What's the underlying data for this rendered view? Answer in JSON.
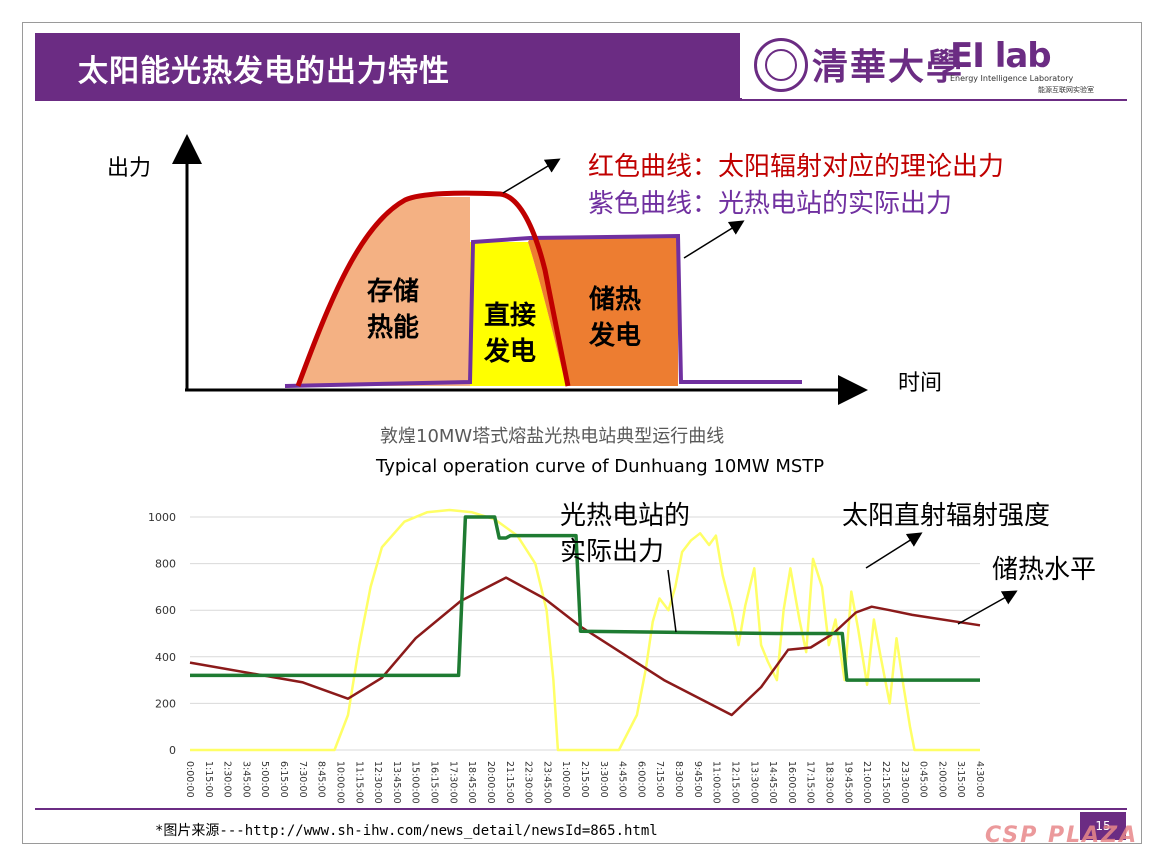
{
  "header": {
    "title": "太阳能光热发电的出力特性",
    "logo_university": "清華大學",
    "logo_lab": "EI lab",
    "logo_lab_sub": "Energy Intelligence Laboratory",
    "logo_lab_sub_cn": "能源互联网实验室"
  },
  "footer": {
    "source": "*图片来源---http://www.sh-ihw.com/news_detail/newsId=865.html",
    "page_number": "15",
    "watermark": "CSP PLAZA"
  },
  "colors": {
    "theme_purple": "#6b2c83",
    "theoretical_curve": "#c00000",
    "actual_curve": "#7030a0",
    "storage_area": "#f4b183",
    "direct_area": "#ffff00",
    "discharge_area": "#ed7d31",
    "plant_output": "#1e7b32",
    "dni": "#ffff66",
    "storage_level": "#8b1a1a"
  },
  "chart_data": [
    {
      "type": "area",
      "ylabel": "出力",
      "xlabel": "时间",
      "legend": [
        {
          "text": "红色曲线：太阳辐射对应的理论出力",
          "color": "#c00000"
        },
        {
          "text": "紫色曲线：光热电站的实际出力",
          "color": "#7030a0"
        }
      ],
      "regions": [
        {
          "label": "存储热能",
          "line1": "存储",
          "line2": "热能",
          "color": "#f4b183"
        },
        {
          "label": "直接发电",
          "line1": "直接",
          "line2": "发电",
          "color": "#ffff00"
        },
        {
          "label": "储热发电",
          "line1": "储热",
          "line2": "发电",
          "color": "#ed7d31"
        }
      ]
    },
    {
      "type": "line",
      "title": "敦煌10MW塔式熔盐光热电站典型运行曲线",
      "subtitle": "Typical operation curve of Dunhuang 10MW MSTP",
      "ylim": [
        0,
        1000
      ],
      "yticks": [
        0,
        200,
        400,
        600,
        800,
        1000
      ],
      "categories": [
        "0:00:00",
        "1:15:00",
        "2:30:00",
        "3:45:00",
        "5:00:00",
        "6:15:00",
        "7:30:00",
        "8:45:00",
        "10:00:00",
        "11:15:00",
        "12:30:00",
        "13:45:00",
        "15:00:00",
        "16:15:00",
        "17:30:00",
        "18:45:00",
        "20:00:00",
        "21:15:00",
        "22:30:00",
        "23:45:00",
        "1:00:00",
        "2:15:00",
        "3:30:00",
        "4:45:00",
        "6:00:00",
        "7:15:00",
        "8:30:00",
        "9:45:00",
        "11:00:00",
        "12:15:00",
        "13:30:00",
        "14:45:00",
        "16:00:00",
        "17:15:00",
        "18:30:00",
        "19:45:00",
        "21:00:00",
        "22:15:00",
        "23:30:00",
        "0:45:00",
        "2:00:00",
        "3:15:00",
        "4:30:00"
      ],
      "series": [
        {
          "name": "光热电站的实际出力",
          "label_line1": "光热电站的",
          "label_line2": "实际出力",
          "color": "#1e7b32",
          "x": [
            0,
            7.9,
            8.1,
            11.9,
            12.2,
            13.5,
            13.7,
            14.0,
            14.2,
            17.1,
            17.3,
            26.0,
            26.2,
            28.9,
            29.1,
            35.0
          ],
          "values": [
            320,
            320,
            320,
            320,
            1000,
            1000,
            910,
            910,
            920,
            920,
            510,
            500,
            500,
            500,
            300,
            300
          ]
        },
        {
          "name": "太阳直射辐射强度",
          "color": "#ffff66",
          "x": [
            0,
            6.4,
            7.0,
            7.5,
            8.0,
            8.5,
            9.5,
            10.5,
            11.5,
            12.5,
            13.5,
            14.5,
            15.3,
            15.8,
            16.1,
            16.3,
            17.5,
            19.0,
            19.8,
            20.2,
            20.5,
            20.8,
            21.2,
            21.5,
            21.8,
            22.2,
            22.6,
            23.0,
            23.3,
            23.6,
            24.0,
            24.3,
            24.6,
            25.0,
            25.3,
            25.6,
            26.0,
            26.3,
            26.6,
            27.0,
            27.3,
            27.6,
            28.0,
            28.3,
            28.6,
            29.0,
            29.3,
            29.6,
            30.0,
            30.3,
            30.6,
            31.0,
            31.3,
            31.6,
            31.9,
            32.1,
            35.0
          ],
          "values": [
            0,
            0,
            150,
            450,
            700,
            870,
            980,
            1020,
            1030,
            1020,
            990,
            920,
            800,
            600,
            300,
            0,
            0,
            0,
            150,
            350,
            550,
            650,
            600,
            700,
            850,
            900,
            930,
            880,
            920,
            750,
            600,
            450,
            620,
            780,
            450,
            380,
            300,
            600,
            780,
            560,
            420,
            820,
            700,
            450,
            560,
            300,
            680,
            520,
            280,
            560,
            400,
            200,
            480,
            280,
            100,
            0,
            0
          ]
        },
        {
          "name": "储热水平",
          "color": "#8b1a1a",
          "x": [
            0,
            5.0,
            7.0,
            8.5,
            10.0,
            12.0,
            14.0,
            15.7,
            17.3,
            21.0,
            24.0,
            25.3,
            26.5,
            27.5,
            28.5,
            29.5,
            30.2,
            31.0,
            32.0,
            35.0
          ],
          "values": [
            375,
            290,
            220,
            310,
            480,
            640,
            740,
            650,
            530,
            300,
            150,
            270,
            430,
            440,
            500,
            590,
            615,
            600,
            580,
            535
          ]
        }
      ]
    }
  ]
}
